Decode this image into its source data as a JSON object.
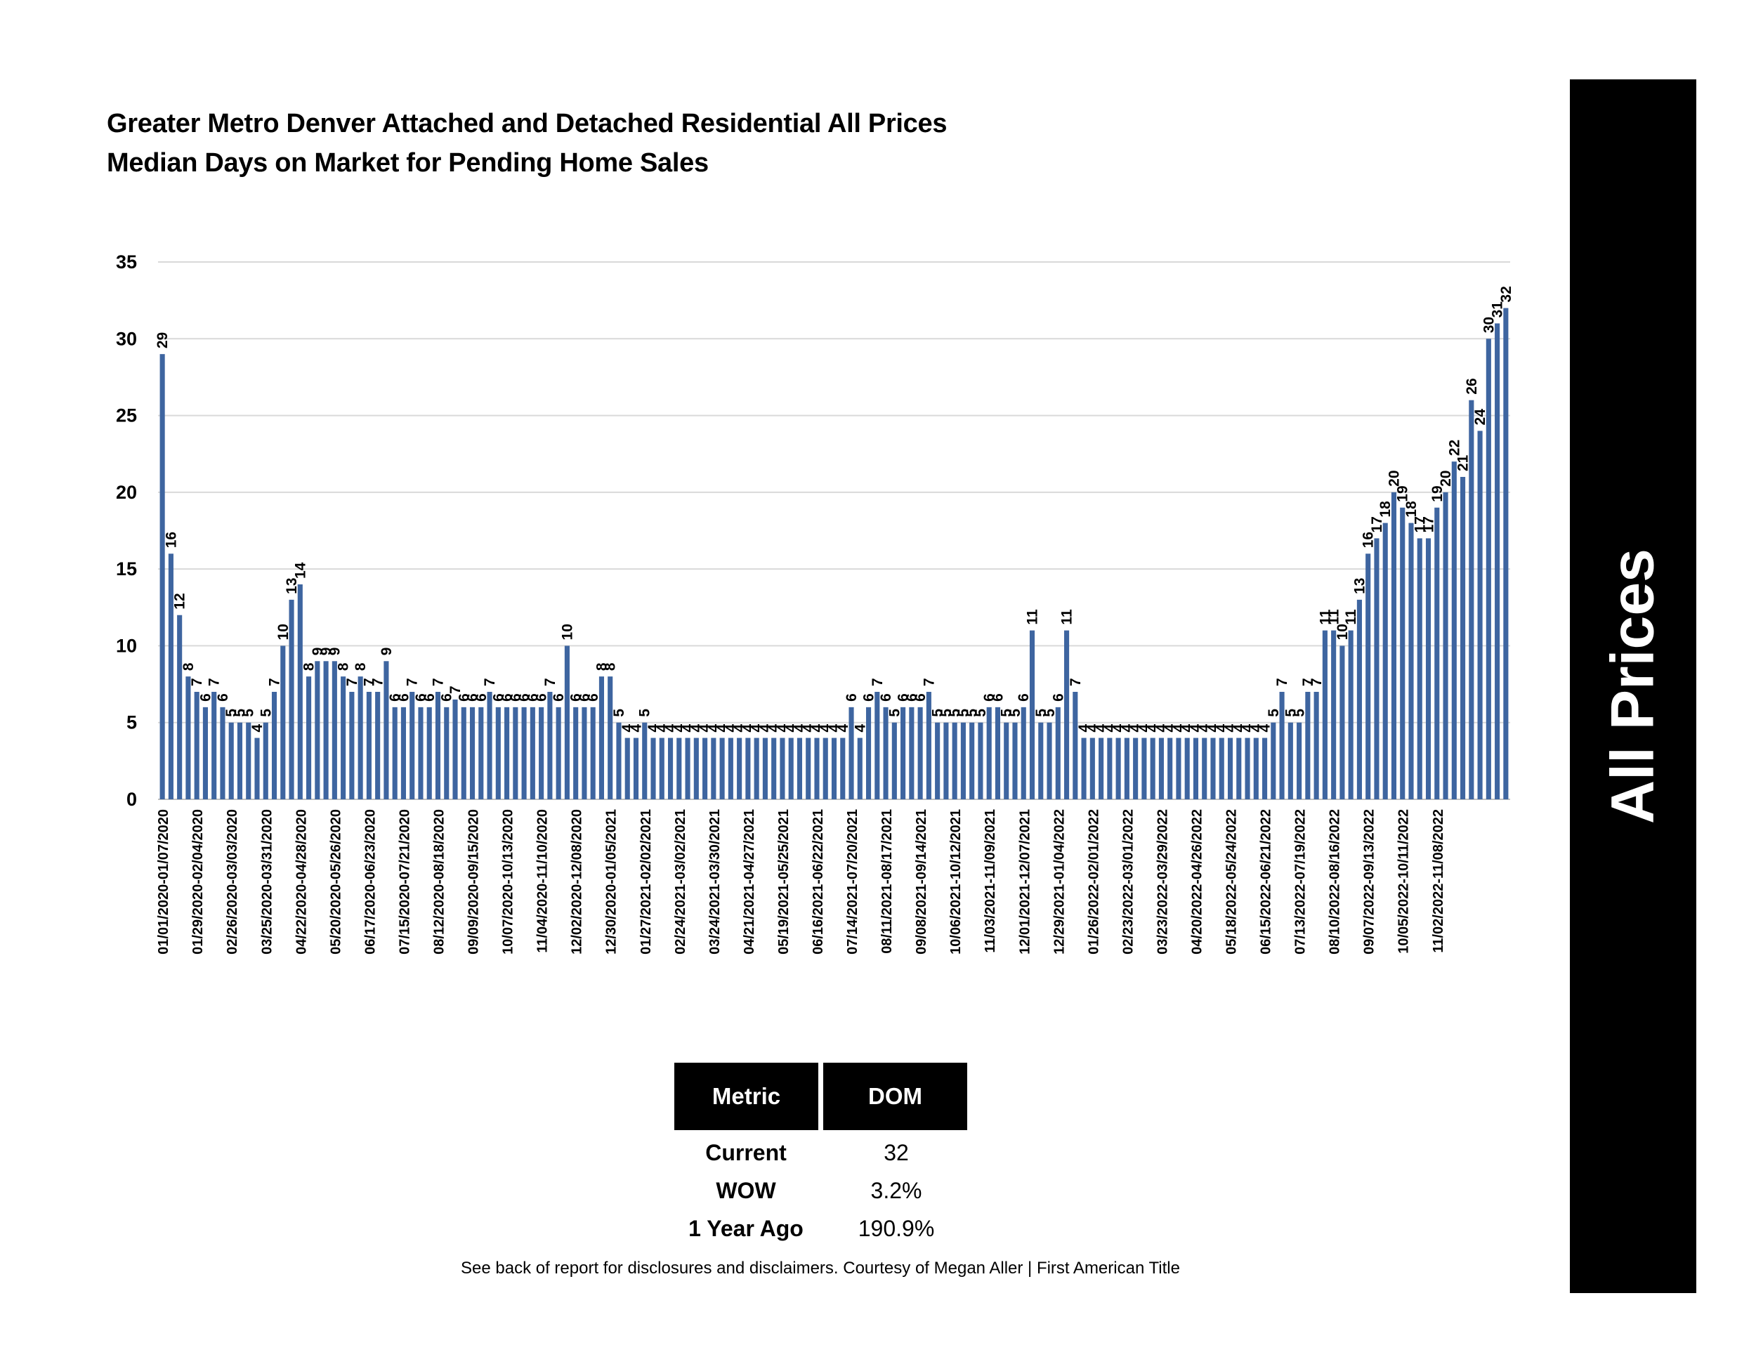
{
  "title_line1": "Greater Metro Denver Attached and Detached Residential All Prices",
  "title_line2": "Median Days on Market for Pending Home Sales",
  "side_banner": "All Prices",
  "metrics_table": {
    "headers": [
      "Metric",
      "DOM"
    ],
    "rows": [
      {
        "label": "Current",
        "value": "32"
      },
      {
        "label": "WOW",
        "value": "3.2%"
      },
      {
        "label": "1 Year Ago",
        "value": "190.9%"
      }
    ]
  },
  "footer": "See back of report for disclosures and disclaimers. Courtesy of Megan Aller | First American Title",
  "colors": {
    "bar": "#3E65A0",
    "grid": "#D9D9D9",
    "axis": "#BFBFBF"
  },
  "chart_data": {
    "type": "bar",
    "title": "Greater Metro Denver Attached and Detached Residential All Prices Median Days on Market for Pending Home Sales",
    "xlabel": "",
    "ylabel": "",
    "ylim": [
      0,
      35
    ],
    "yticks": [
      0,
      5,
      10,
      15,
      20,
      25,
      30,
      35
    ],
    "grid": true,
    "legend": "none",
    "values": [
      29,
      16,
      12,
      8,
      7,
      6,
      7,
      6,
      5,
      5,
      5,
      4,
      5,
      7,
      10,
      13,
      14,
      8,
      9,
      9,
      9,
      8,
      7,
      8,
      7,
      7,
      9,
      6,
      6,
      7,
      6,
      6,
      7,
      6,
      6.5,
      6,
      6,
      6,
      7,
      6,
      6,
      6,
      6,
      6,
      6,
      7,
      6,
      10,
      6,
      6,
      6,
      8,
      8,
      5,
      4,
      4,
      5,
      4,
      4,
      4,
      4,
      4,
      4,
      4,
      4,
      4,
      4,
      4,
      4,
      4,
      4,
      4,
      4,
      4,
      4,
      4,
      4,
      4,
      4,
      4,
      6,
      4,
      6,
      7,
      6,
      5,
      6,
      6,
      6,
      7,
      5,
      5,
      5,
      5,
      5,
      5,
      6,
      6,
      5,
      5,
      6,
      11,
      5,
      5,
      6,
      11,
      7,
      4,
      4,
      4,
      4,
      4,
      4,
      4,
      4,
      4,
      4,
      4,
      4,
      4,
      4,
      4,
      4,
      4,
      4,
      4,
      4,
      4,
      4,
      5,
      7,
      5,
      5,
      7,
      7,
      11,
      11,
      10,
      11,
      13,
      16,
      17,
      18,
      20,
      19,
      18,
      17,
      17,
      19,
      20,
      22,
      21,
      26,
      24,
      30,
      31,
      32
    ],
    "data_labels": [
      "29",
      "16",
      "12",
      "8",
      "7",
      "6",
      "7",
      "6",
      "5",
      "5",
      "5",
      "4",
      "5",
      "7",
      "10",
      "13",
      "14",
      "8",
      "9",
      "9",
      "9",
      "8",
      "7",
      "8",
      "7",
      "7",
      "9",
      "6",
      "6",
      "7",
      "6",
      "6",
      "7",
      "6",
      "7",
      "6",
      "6",
      "6",
      "7",
      "6",
      "6",
      "6",
      "6",
      "6",
      "6",
      "7",
      "6",
      "10",
      "6",
      "6",
      "6",
      "8",
      "8",
      "5",
      "4",
      "4",
      "5",
      "4",
      "4",
      "4",
      "4",
      "4",
      "4",
      "4",
      "4",
      "4",
      "4",
      "4",
      "4",
      "4",
      "4",
      "4",
      "4",
      "4",
      "4",
      "4",
      "4",
      "4",
      "4",
      "4",
      "6",
      "4",
      "6",
      "7",
      "6",
      "5",
      "6",
      "6",
      "6",
      "7",
      "5",
      "5",
      "5",
      "5",
      "5",
      "5",
      "6",
      "6",
      "5",
      "5",
      "6",
      "11",
      "5",
      "5",
      "6",
      "11",
      "7",
      "4",
      "4",
      "4",
      "4",
      "4",
      "4",
      "4",
      "4",
      "4",
      "4",
      "4",
      "4",
      "4",
      "4",
      "4",
      "4",
      "4",
      "4",
      "4",
      "4",
      "4",
      "4",
      "5",
      "7",
      "5",
      "5",
      "7",
      "7",
      "11",
      "11",
      "10",
      "11",
      "13",
      "16",
      "17",
      "18",
      "20",
      "19",
      "18",
      "17",
      "17",
      "19",
      "20",
      "22",
      "21",
      "26",
      "24",
      "30",
      "31",
      "32"
    ],
    "category_labels": [
      {
        "bar": 0,
        "text": "01/01/2020-01/07/2020"
      },
      {
        "bar": 4,
        "text": "01/29/2020-02/04/2020"
      },
      {
        "bar": 8,
        "text": "02/26/2020-03/03/2020"
      },
      {
        "bar": 12,
        "text": "03/25/2020-03/31/2020"
      },
      {
        "bar": 16,
        "text": "04/22/2020-04/28/2020"
      },
      {
        "bar": 20,
        "text": "05/20/2020-05/26/2020"
      },
      {
        "bar": 24,
        "text": "06/17/2020-06/23/2020"
      },
      {
        "bar": 28,
        "text": "07/15/2020-07/21/2020"
      },
      {
        "bar": 32,
        "text": "08/12/2020-08/18/2020"
      },
      {
        "bar": 36,
        "text": "09/09/2020-09/15/2020"
      },
      {
        "bar": 40,
        "text": "10/07/2020-10/13/2020"
      },
      {
        "bar": 44,
        "text": "11/04/2020-11/10/2020"
      },
      {
        "bar": 48,
        "text": "12/02/2020-12/08/2020"
      },
      {
        "bar": 52,
        "text": "12/30/2020-01/05/2021"
      },
      {
        "bar": 56,
        "text": "01/27/2021-02/02/2021"
      },
      {
        "bar": 60,
        "text": "02/24/2021-03/02/2021"
      },
      {
        "bar": 64,
        "text": "03/24/2021-03/30/2021"
      },
      {
        "bar": 68,
        "text": "04/21/2021-04/27/2021"
      },
      {
        "bar": 72,
        "text": "05/19/2021-05/25/2021"
      },
      {
        "bar": 76,
        "text": "06/16/2021-06/22/2021"
      },
      {
        "bar": 80,
        "text": "07/14/2021-07/20/2021"
      },
      {
        "bar": 84,
        "text": "08/11/2021-08/17/2021"
      },
      {
        "bar": 88,
        "text": "09/08/2021-09/14/2021"
      },
      {
        "bar": 92,
        "text": "10/06/2021-10/12/2021"
      },
      {
        "bar": 96,
        "text": "11/03/2021-11/09/2021"
      },
      {
        "bar": 100,
        "text": "12/01/2021-12/07/2021"
      },
      {
        "bar": 104,
        "text": "12/29/2021-01/04/2022"
      },
      {
        "bar": 108,
        "text": "01/26/2022-02/01/2022"
      },
      {
        "bar": 112,
        "text": "02/23/2022-03/01/2022"
      },
      {
        "bar": 116,
        "text": "03/23/2022-03/29/2022"
      },
      {
        "bar": 120,
        "text": "04/20/2022-04/26/2022"
      },
      {
        "bar": 124,
        "text": "05/18/2022-05/24/2022"
      },
      {
        "bar": 128,
        "text": "06/15/2022-06/21/2022"
      },
      {
        "bar": 132,
        "text": "07/13/2022-07/19/2022"
      },
      {
        "bar": 136,
        "text": "08/10/2022-08/16/2022"
      },
      {
        "bar": 140,
        "text": "09/07/2022-09/13/2022"
      },
      {
        "bar": 144,
        "text": "10/05/2022-10/11/2022"
      },
      {
        "bar": 148,
        "text": "11/02/2022-11/08/2022"
      }
    ]
  }
}
